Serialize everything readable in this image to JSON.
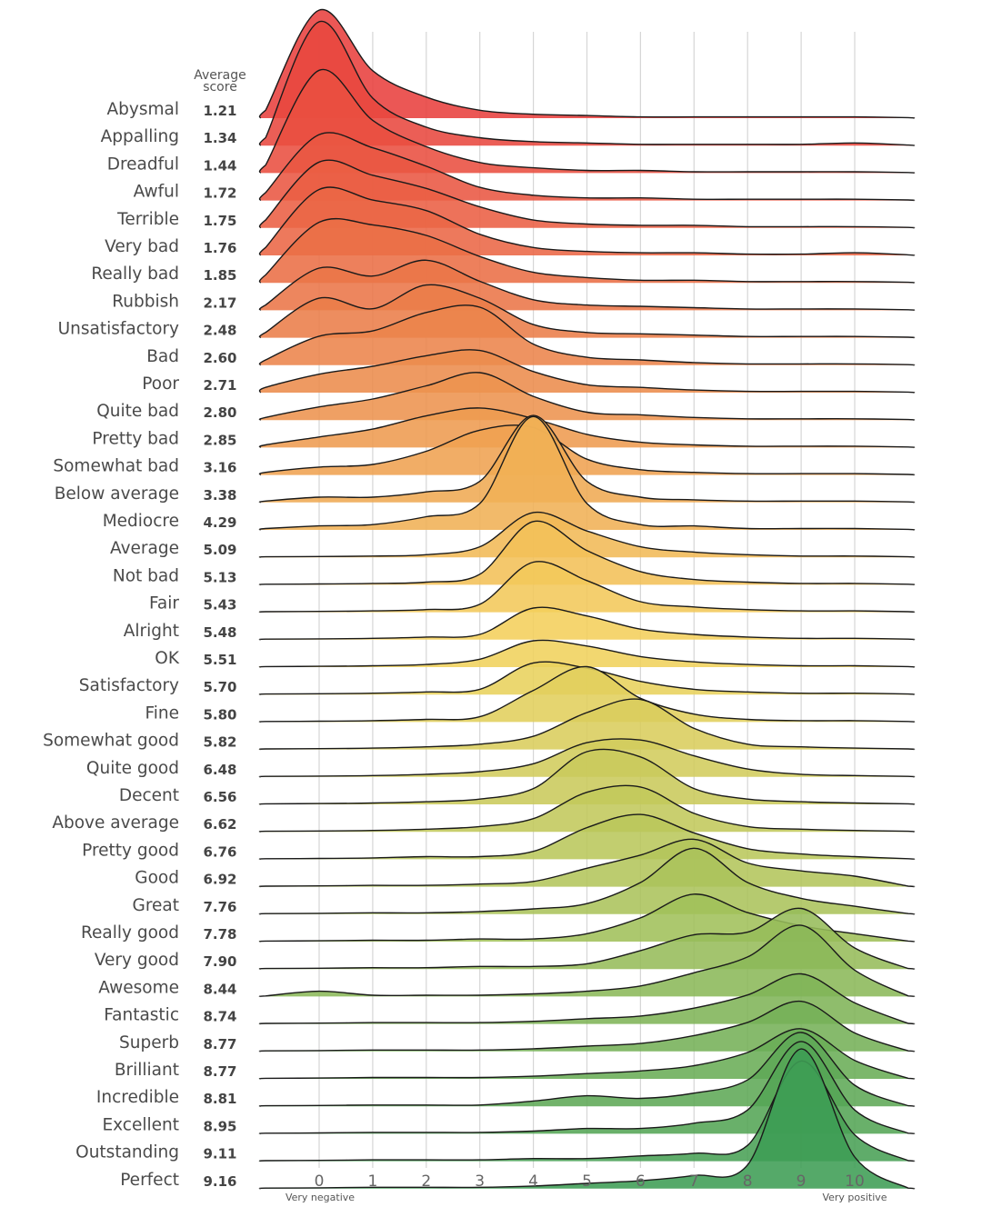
{
  "chart_data": {
    "type": "ridgeline",
    "score_header": [
      "Average",
      "score"
    ],
    "x_ticks": [
      0,
      1,
      2,
      3,
      4,
      5,
      6,
      7,
      8,
      9,
      10
    ],
    "x_range": [
      -1.1,
      11.1
    ],
    "x_end_labels": {
      "left": "Very negative",
      "right": "Very positive"
    },
    "grid": "vertical",
    "density_x": [
      -1,
      0,
      1,
      2,
      3,
      4,
      5,
      6,
      7,
      8,
      9,
      10,
      11
    ],
    "color_stops": [
      "#e8403d",
      "#ec8a4c",
      "#f4d35c",
      "#a9c35b",
      "#3e9d54"
    ],
    "series": [
      {
        "name": "Abysmal",
        "score": "1.21",
        "density": [
          0.3,
          4.1,
          1.8,
          0.8,
          0.3,
          0.15,
          0.1,
          0.05,
          0.05,
          0.05,
          0.05,
          0.05,
          0.02
        ]
      },
      {
        "name": "Appalling",
        "score": "1.34",
        "density": [
          0.3,
          4.7,
          1.8,
          0.7,
          0.3,
          0.15,
          0.1,
          0.05,
          0.05,
          0.05,
          0.05,
          0.1,
          0.02
        ]
      },
      {
        "name": "Dreadful",
        "score": "1.44",
        "density": [
          0.3,
          3.9,
          2.0,
          1.0,
          0.4,
          0.2,
          0.1,
          0.1,
          0.05,
          0.05,
          0.05,
          0.05,
          0.02
        ]
      },
      {
        "name": "Awful",
        "score": "1.72",
        "density": [
          0.3,
          2.5,
          2.0,
          1.3,
          0.5,
          0.2,
          0.1,
          0.1,
          0.05,
          0.05,
          0.05,
          0.05,
          0.02
        ]
      },
      {
        "name": "Terrible",
        "score": "1.75",
        "density": [
          0.3,
          2.5,
          2.0,
          1.5,
          0.8,
          0.3,
          0.15,
          0.1,
          0.1,
          0.05,
          0.05,
          0.05,
          0.02
        ]
      },
      {
        "name": "Very bad",
        "score": "1.76",
        "density": [
          0.3,
          2.5,
          2.1,
          1.7,
          0.8,
          0.3,
          0.15,
          0.1,
          0.1,
          0.05,
          0.05,
          0.1,
          0.02
        ]
      },
      {
        "name": "Really bad",
        "score": "1.85",
        "density": [
          0.3,
          2.3,
          2.2,
          1.8,
          1.0,
          0.4,
          0.2,
          0.1,
          0.1,
          0.05,
          0.05,
          0.05,
          0.02
        ]
      },
      {
        "name": "Rubbish",
        "score": "2.17",
        "density": [
          0.2,
          1.6,
          1.3,
          1.9,
          1.1,
          0.4,
          0.2,
          0.15,
          0.1,
          0.05,
          0.05,
          0.05,
          0.02
        ]
      },
      {
        "name": "Unsatisfactory",
        "score": "2.48",
        "density": [
          0.2,
          1.5,
          1.1,
          2.0,
          1.5,
          0.5,
          0.2,
          0.15,
          0.1,
          0.05,
          0.05,
          0.05,
          0.02
        ]
      },
      {
        "name": "Bad",
        "score": "2.60",
        "density": [
          0.2,
          1.1,
          1.3,
          2.0,
          2.2,
          0.8,
          0.3,
          0.2,
          0.1,
          0.05,
          0.05,
          0.05,
          0.02
        ]
      },
      {
        "name": "Poor",
        "score": "2.71",
        "density": [
          0.2,
          0.7,
          1.0,
          1.4,
          1.6,
          0.8,
          0.3,
          0.2,
          0.1,
          0.05,
          0.05,
          0.05,
          0.02
        ]
      },
      {
        "name": "Quite bad",
        "score": "2.80",
        "density": [
          0.1,
          0.5,
          0.8,
          1.3,
          1.8,
          0.9,
          0.3,
          0.2,
          0.1,
          0.05,
          0.05,
          0.05,
          0.02
        ]
      },
      {
        "name": "Pretty bad",
        "score": "2.85",
        "density": [
          0.1,
          0.4,
          0.7,
          1.2,
          1.5,
          1.1,
          0.5,
          0.2,
          0.1,
          0.05,
          0.05,
          0.05,
          0.02
        ]
      },
      {
        "name": "Somewhat bad",
        "score": "3.16",
        "density": [
          0.1,
          0.3,
          0.4,
          0.9,
          1.7,
          1.8,
          0.6,
          0.2,
          0.1,
          0.05,
          0.05,
          0.05,
          0.02
        ]
      },
      {
        "name": "Below average",
        "score": "3.38",
        "density": [
          0.05,
          0.2,
          0.2,
          0.4,
          0.8,
          3.3,
          0.8,
          0.2,
          0.1,
          0.05,
          0.05,
          0.05,
          0.02
        ]
      },
      {
        "name": "Mediocre",
        "score": "4.29",
        "density": [
          0.05,
          0.15,
          0.2,
          0.5,
          1.0,
          4.3,
          1.0,
          0.2,
          0.15,
          0.05,
          0.05,
          0.05,
          0.02
        ]
      },
      {
        "name": "Average",
        "score": "5.09",
        "density": [
          0.02,
          0.03,
          0.05,
          0.1,
          0.4,
          1.7,
          1.0,
          0.4,
          0.2,
          0.1,
          0.05,
          0.05,
          0.02
        ]
      },
      {
        "name": "Not bad",
        "score": "5.13",
        "density": [
          0.02,
          0.03,
          0.05,
          0.1,
          0.4,
          2.4,
          1.3,
          0.5,
          0.2,
          0.1,
          0.05,
          0.05,
          0.02
        ]
      },
      {
        "name": "Fair",
        "score": "5.43",
        "density": [
          0.02,
          0.03,
          0.05,
          0.1,
          0.3,
          1.9,
          1.2,
          0.4,
          0.2,
          0.1,
          0.05,
          0.05,
          0.02
        ]
      },
      {
        "name": "Alright",
        "score": "5.48",
        "density": [
          0.02,
          0.03,
          0.05,
          0.1,
          0.2,
          1.2,
          0.9,
          0.4,
          0.2,
          0.1,
          0.05,
          0.05,
          0.02
        ]
      },
      {
        "name": "OK",
        "score": "5.51",
        "density": [
          0.02,
          0.03,
          0.05,
          0.1,
          0.3,
          1.0,
          0.8,
          0.4,
          0.2,
          0.1,
          0.05,
          0.05,
          0.02
        ]
      },
      {
        "name": "Satisfactory",
        "score": "5.70",
        "density": [
          0.02,
          0.03,
          0.05,
          0.1,
          0.2,
          1.2,
          1.0,
          0.5,
          0.2,
          0.1,
          0.05,
          0.05,
          0.02
        ]
      },
      {
        "name": "Fine",
        "score": "5.80",
        "density": [
          0.02,
          0.03,
          0.05,
          0.1,
          0.2,
          1.2,
          2.1,
          0.9,
          0.3,
          0.1,
          0.05,
          0.05,
          0.02
        ]
      },
      {
        "name": "Somewhat good",
        "score": "5.82",
        "density": [
          0.02,
          0.03,
          0.05,
          0.1,
          0.2,
          0.5,
          1.4,
          1.9,
          0.8,
          0.2,
          0.1,
          0.05,
          0.02
        ]
      },
      {
        "name": "Quite good",
        "score": "6.48",
        "density": [
          0.02,
          0.03,
          0.05,
          0.1,
          0.2,
          0.5,
          1.3,
          1.4,
          0.8,
          0.3,
          0.1,
          0.05,
          0.02
        ]
      },
      {
        "name": "Decent",
        "score": "6.56",
        "density": [
          0.02,
          0.03,
          0.05,
          0.1,
          0.2,
          0.6,
          2.0,
          1.8,
          0.6,
          0.2,
          0.1,
          0.05,
          0.02
        ]
      },
      {
        "name": "Above average",
        "score": "6.62",
        "density": [
          0.02,
          0.03,
          0.05,
          0.1,
          0.2,
          0.5,
          1.5,
          1.7,
          0.7,
          0.2,
          0.1,
          0.05,
          0.02
        ]
      },
      {
        "name": "Pretty good",
        "score": "6.76",
        "density": [
          0.02,
          0.03,
          0.05,
          0.1,
          0.1,
          0.3,
          1.2,
          1.7,
          1.0,
          0.4,
          0.2,
          0.1,
          0.02
        ]
      },
      {
        "name": "Good",
        "score": "6.92",
        "density": [
          0.02,
          0.03,
          0.05,
          0.05,
          0.1,
          0.2,
          0.7,
          1.2,
          1.8,
          0.9,
          0.6,
          0.4,
          0.02
        ]
      },
      {
        "name": "Great",
        "score": "7.76",
        "density": [
          0.02,
          0.03,
          0.05,
          0.05,
          0.1,
          0.2,
          0.4,
          1.2,
          2.5,
          1.2,
          0.6,
          0.3,
          0.02
        ]
      },
      {
        "name": "Really good",
        "score": "7.78",
        "density": [
          0.02,
          0.03,
          0.05,
          0.05,
          0.1,
          0.1,
          0.3,
          0.9,
          1.8,
          1.1,
          0.6,
          0.3,
          0.02
        ]
      },
      {
        "name": "Very good",
        "score": "7.90",
        "density": [
          0.02,
          0.03,
          0.05,
          0.05,
          0.1,
          0.1,
          0.2,
          0.7,
          1.3,
          1.4,
          2.3,
          0.8,
          0.02
        ]
      },
      {
        "name": "Awesome",
        "score": "8.44",
        "density": [
          0.02,
          0.2,
          0.05,
          0.05,
          0.05,
          0.1,
          0.2,
          0.4,
          0.9,
          1.5,
          2.7,
          1.0,
          0.02
        ]
      },
      {
        "name": "Fantastic",
        "score": "8.74",
        "density": [
          0.02,
          0.03,
          0.05,
          0.05,
          0.05,
          0.1,
          0.2,
          0.3,
          0.6,
          1.1,
          1.9,
          0.8,
          0.02
        ]
      },
      {
        "name": "Superb",
        "score": "8.77",
        "density": [
          0.02,
          0.03,
          0.05,
          0.05,
          0.05,
          0.1,
          0.2,
          0.3,
          0.6,
          1.1,
          1.9,
          0.7,
          0.02
        ]
      },
      {
        "name": "Brilliant",
        "score": "8.77",
        "density": [
          0.02,
          0.03,
          0.05,
          0.05,
          0.05,
          0.1,
          0.2,
          0.3,
          0.5,
          1.0,
          1.9,
          0.7,
          0.02
        ]
      },
      {
        "name": "Incredible",
        "score": "8.81",
        "density": [
          0.02,
          0.03,
          0.05,
          0.05,
          0.05,
          0.2,
          0.4,
          0.3,
          0.5,
          1.0,
          2.8,
          0.8,
          0.02
        ]
      },
      {
        "name": "Excellent",
        "score": "8.95",
        "density": [
          0.02,
          0.03,
          0.05,
          0.05,
          0.05,
          0.1,
          0.2,
          0.2,
          0.4,
          0.9,
          3.5,
          0.9,
          0.02
        ]
      },
      {
        "name": "Outstanding",
        "score": "9.11",
        "density": [
          0.02,
          0.03,
          0.05,
          0.05,
          0.05,
          0.1,
          0.1,
          0.2,
          0.3,
          0.6,
          3.8,
          1.0,
          0.02
        ]
      },
      {
        "name": "Perfect",
        "score": "9.16",
        "density": [
          0.02,
          0.03,
          0.05,
          0.05,
          0.05,
          0.1,
          0.2,
          0.3,
          0.5,
          0.9,
          5.3,
          1.2,
          0.02
        ]
      }
    ]
  }
}
